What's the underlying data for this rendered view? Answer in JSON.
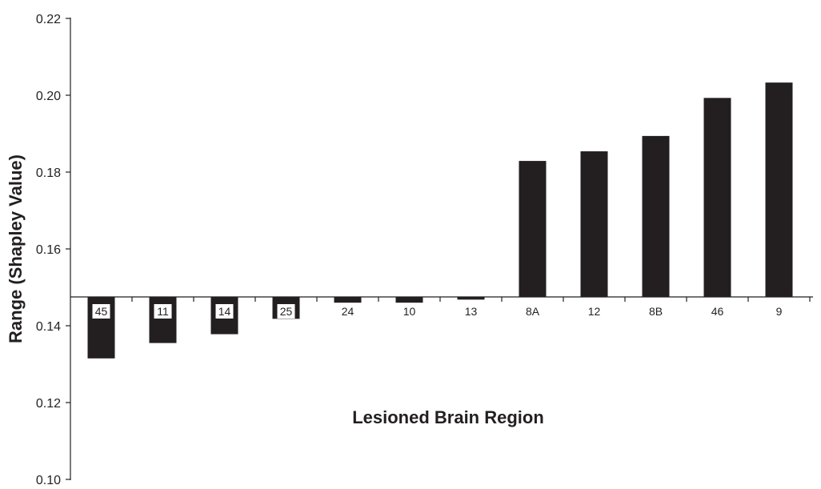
{
  "chart_data": {
    "type": "bar",
    "title": "",
    "xlabel": "Lesioned Brain Region",
    "ylabel": "Range (Shapley Value)",
    "ylim": [
      0.1,
      0.22
    ],
    "baseline": 0.1475,
    "yticks": [
      "0.10",
      "0.12",
      "0.14",
      "0.16",
      "0.18",
      "0.20",
      "0.22"
    ],
    "categories": [
      "45",
      "11",
      "14",
      "25",
      "24",
      "10",
      "13",
      "8A",
      "12",
      "8B",
      "46",
      "9"
    ],
    "values": [
      0.1315,
      0.1355,
      0.1378,
      0.1418,
      0.146,
      0.146,
      0.1468,
      0.1829,
      0.1854,
      0.1894,
      0.1993,
      0.2033
    ],
    "grid": false,
    "legend": "none",
    "bar_color": "#231f20",
    "axis_color": "#231f20"
  }
}
